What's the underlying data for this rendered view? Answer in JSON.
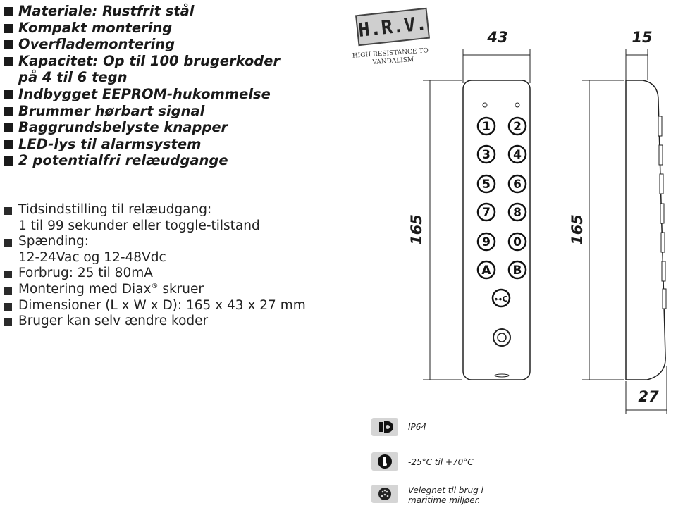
{
  "features_bold": [
    "Materiale: Rustfrit stål",
    "Kompakt montering",
    "Overflademontering",
    "Kapacitet: Op til 100 brugerkoder",
    "på 4 til 6 tegn",
    "Indbygget EEPROM-hukommelse",
    "Brummer hørbart signal",
    "Baggrundsbelyste knapper",
    "LED-lys til alarmsystem",
    "2 potentialfri relæudgange"
  ],
  "features_plain": [
    "Tidsindstilling til relæudgang:",
    "1 til 99 sekunder eller toggle-tilstand",
    "Spænding:",
    "12-24Vac og 12-48Vdc",
    "Forbrug: 25 til 80mA",
    "Montering med Diax",
    "®",
    " skruer",
    "Dimensioner (L x W x D): 165 x 43 x 27 mm",
    "Bruger kan selv ændre koder"
  ],
  "badge": {
    "title": "H.R.V.",
    "subtitle_1": "HIGH RESISTANCE TO",
    "subtitle_2": "VANDALISM"
  },
  "dimensions": {
    "width": "43",
    "depth_top": "15",
    "height_front": "165",
    "height_side": "165",
    "depth_bottom": "27"
  },
  "keys": [
    "1",
    "2",
    "3",
    "4",
    "5",
    "6",
    "7",
    "8",
    "9",
    "0",
    "A",
    "B",
    "⊶C"
  ],
  "icons": {
    "ip_icon": "ip-rating-icon",
    "temp_icon": "temperature-icon",
    "marine_icon": "marine-icon"
  },
  "specs": {
    "ip": "IP64",
    "temperature": "-25°C til +70°C",
    "marine_1": "Velegnet til brug i",
    "marine_2": "maritime miljøer."
  }
}
